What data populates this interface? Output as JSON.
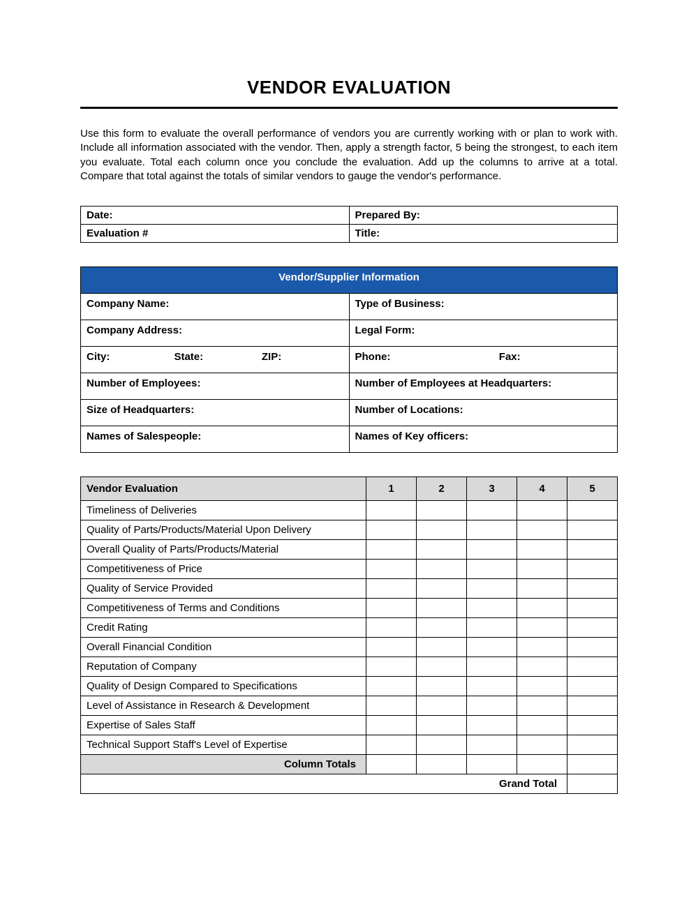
{
  "title": "VENDOR EVALUATION",
  "intro": "Use this form to evaluate the overall performance of vendors you are currently working with or plan to work with. Include all information associated with the vendor. Then, apply a strength factor, 5 being the strongest, to each item you evaluate. Total each column once you conclude the evaluation. Add up the columns to arrive at a total. Compare that total against the totals of similar vendors to gauge the vendor's performance.",
  "meta": {
    "date_label": "Date:",
    "prepared_by_label": "Prepared By:",
    "evaluation_num_label": "Evaluation #",
    "title_label": "Title:"
  },
  "vendor_info": {
    "header": "Vendor/Supplier Information",
    "company_name": "Company Name:",
    "type_of_business": "Type of Business:",
    "company_address": "Company Address:",
    "legal_form": "Legal Form:",
    "city": "City:",
    "state": "State:",
    "zip": "ZIP:",
    "phone": "Phone:",
    "fax": "Fax:",
    "num_employees": "Number of Employees:",
    "num_employees_hq": "Number of Employees at Headquarters:",
    "size_hq": "Size of Headquarters:",
    "num_locations": "Number of Locations:",
    "names_salespeople": "Names of Salespeople:",
    "names_key_officers": "Names of Key officers:"
  },
  "evaluation": {
    "header_label": "Vendor Evaluation",
    "scores": [
      "1",
      "2",
      "3",
      "4",
      "5"
    ],
    "items": [
      "Timeliness of Deliveries",
      "Quality of Parts/Products/Material Upon Delivery",
      "Overall Quality of Parts/Products/Material",
      "Competitiveness of Price",
      "Quality of Service Provided",
      "Competitiveness of Terms and Conditions",
      "Credit Rating",
      "Overall Financial Condition",
      "Reputation of Company",
      "Quality of Design Compared to Specifications",
      "Level of Assistance in Research & Development",
      "Expertise of Sales Staff",
      "Technical Support Staff's Level of Expertise"
    ],
    "column_totals_label": "Column Totals",
    "grand_total_label": "Grand Total"
  },
  "colors": {
    "header_bg": "#1b5aab",
    "header_text": "#ffffff",
    "shade_bg": "#d9d9d9",
    "border": "#000000",
    "page_bg": "#ffffff"
  }
}
